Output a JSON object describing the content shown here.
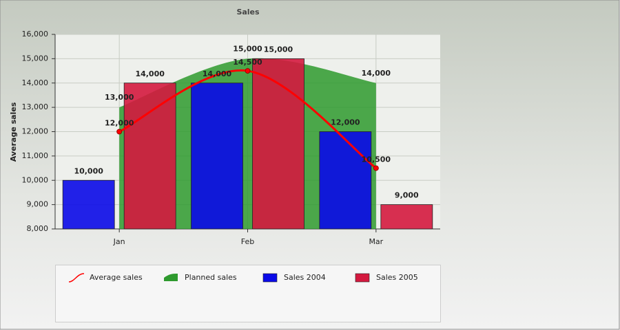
{
  "chart_data": {
    "type": "bar",
    "title": "Sales",
    "y_label": "Average sales",
    "categories": [
      "Jan",
      "Feb",
      "Mar"
    ],
    "ylim": [
      8000,
      16000
    ],
    "yticks": [
      {
        "value": 8000,
        "label": "8,000"
      },
      {
        "value": 9000,
        "label": "9,000"
      },
      {
        "value": 10000,
        "label": "10,000"
      },
      {
        "value": 11000,
        "label": "11,000"
      },
      {
        "value": 12000,
        "label": "12,000"
      },
      {
        "value": 13000,
        "label": "13,000"
      },
      {
        "value": 14000,
        "label": "14,000"
      },
      {
        "value": 15000,
        "label": "15,000"
      },
      {
        "value": 16000,
        "label": "16,000"
      }
    ],
    "grid": true,
    "series": [
      {
        "name": "Average sales",
        "type": "line",
        "color": "#ff0000",
        "values": [
          12000,
          14500,
          10500
        ],
        "value_labels": [
          "12,000",
          "14,500",
          "10,500"
        ]
      },
      {
        "name": "Planned sales",
        "type": "area",
        "color": "#2e9a2e",
        "values": [
          13000,
          15000,
          14000
        ],
        "value_labels": [
          "13,000",
          "15,000",
          "14,000"
        ]
      },
      {
        "name": "Sales 2004",
        "type": "bar",
        "color": "#0a0ae8",
        "values": [
          10000,
          14000,
          12000
        ],
        "value_labels": [
          "10,000",
          "14,000",
          "12,000"
        ]
      },
      {
        "name": "Sales 2005",
        "type": "bar",
        "color": "#d4193f",
        "values": [
          14000,
          15000,
          9000
        ],
        "value_labels": [
          "14,000",
          "15,000",
          "9,000"
        ]
      }
    ]
  }
}
